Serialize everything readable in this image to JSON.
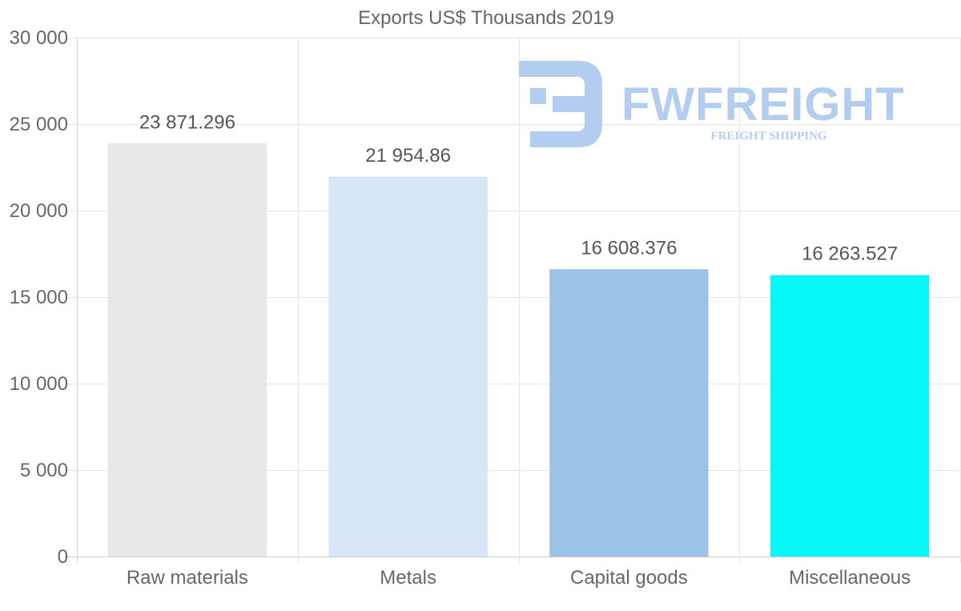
{
  "chart_data": {
    "type": "bar",
    "title": "Exports US$ Thousands 2019",
    "categories": [
      "Raw materials",
      "Metals",
      "Capital goods",
      "Miscellaneous"
    ],
    "values": [
      23871.296,
      21954.86,
      16608.376,
      16263.527
    ],
    "value_labels": [
      "23 871.296",
      "21 954.86",
      "16 608.376",
      "16 263.527"
    ],
    "colors": [
      "#e8e8e8",
      "#d7e7f8",
      "#9bc3e7",
      "#05f7f7"
    ],
    "ylim": [
      0,
      30000
    ],
    "yticks": [
      0,
      5000,
      10000,
      15000,
      20000,
      25000,
      30000
    ],
    "ytick_labels": [
      "0",
      "5 000",
      "10 000",
      "15 000",
      "20 000",
      "25 000",
      "30 000"
    ],
    "xlabel": "",
    "ylabel": "",
    "grid": true
  },
  "watermark": {
    "brand": "FWFREIGHT",
    "tagline": "FREIGHT SHIPPING",
    "color": "#b3cdf1"
  }
}
